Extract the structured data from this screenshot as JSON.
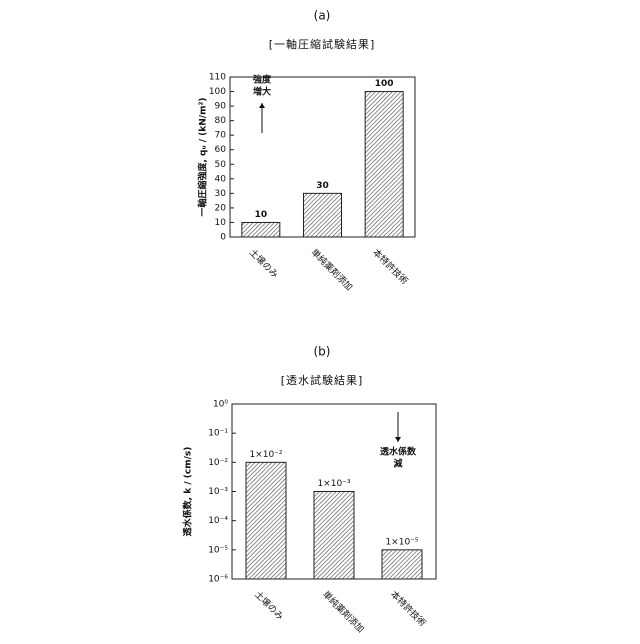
{
  "chart_data": [
    {
      "type": "bar",
      "title": "(a)",
      "subtitle": "[一軸圧縮試験結果]",
      "y_label": "一軸圧縮強度, qᵤ / (kN/m²)",
      "categories": [
        "土壌のみ",
        "単純薬剤添加",
        "本特許技術"
      ],
      "values": [
        10,
        30,
        100
      ],
      "color": "#555555",
      "ylim": [
        0,
        110
      ],
      "yticks": [
        0,
        10,
        20,
        30,
        40,
        50,
        60,
        70,
        80,
        90,
        100,
        110
      ],
      "log_scale": false,
      "grid": false,
      "annotation": [
        "強度",
        "増大"
      ],
      "annotation_arrow": "up"
    },
    {
      "type": "bar",
      "title": "(b)",
      "subtitle": "[透水試験結果]",
      "y_label": "透水係数, k / (cm/s)",
      "categories": [
        "土壌のみ",
        "単純薬剤添加",
        "本特許技術"
      ],
      "values": [
        0.01,
        0.001,
        1e-05
      ],
      "value_labels": [
        "1×10⁻²",
        "1×10⁻³",
        "1×10⁻⁵"
      ],
      "color": "#555555",
      "ylim": [
        1e-06,
        1
      ],
      "yticks": [
        {
          "value": 1,
          "label": "10⁰"
        },
        {
          "value": 0.1,
          "label": "10⁻¹"
        },
        {
          "value": 0.01,
          "label": "10⁻²"
        },
        {
          "value": 0.001,
          "label": "10⁻³"
        },
        {
          "value": 0.0001,
          "label": "10⁻⁴"
        },
        {
          "value": 1e-05,
          "label": "10⁻⁵"
        },
        {
          "value": 1e-06,
          "label": "10⁻⁶"
        }
      ],
      "log_scale": true,
      "grid": false,
      "annotation": [
        "透水係数",
        "減"
      ],
      "annotation_arrow": "down"
    }
  ]
}
